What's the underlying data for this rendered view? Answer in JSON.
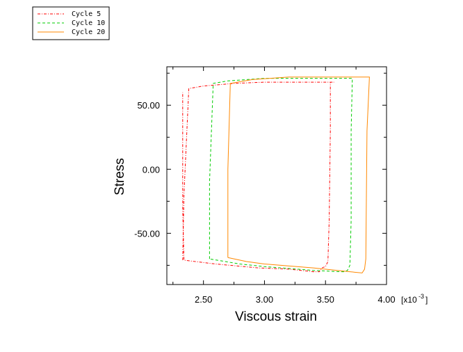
{
  "chart_data": {
    "type": "line",
    "xlabel": "Viscous strain",
    "ylabel": "Stress",
    "x_multiplier_label": "[x10",
    "x_multiplier_exp": "-3",
    "x_multiplier_close": "]",
    "xlim": [
      2.2,
      4.0
    ],
    "ylim": [
      -90,
      80
    ],
    "xticks": [
      2.5,
      3.0,
      3.5,
      4.0
    ],
    "xtick_labels": [
      "2.50",
      "3.00",
      "3.50",
      "4.00"
    ],
    "yticks": [
      -50,
      0,
      50
    ],
    "ytick_labels": [
      "-50.00",
      "0.00",
      "50.00"
    ],
    "grid": false,
    "legend_position": "top-left",
    "series": [
      {
        "name": "Cycle 5",
        "color": "#ff0000",
        "style": "dash-dot",
        "x": [
          2.33,
          2.34,
          2.38,
          2.5,
          2.75,
          3.0,
          3.25,
          3.48,
          3.54,
          3.57,
          3.54,
          3.54,
          3.53,
          3.52,
          3.5,
          3.47,
          3.45,
          3.4,
          3.2,
          2.95,
          2.6,
          2.34,
          2.33,
          2.33
        ],
        "y": [
          -71,
          -20,
          63,
          65,
          67,
          68,
          68,
          68,
          68,
          68,
          68,
          30,
          -40,
          -72,
          -76,
          -77,
          -80,
          -80,
          -78,
          -77,
          -74,
          -71,
          -30,
          60
        ]
      },
      {
        "name": "Cycle 10",
        "color": "#00cc00",
        "style": "dashed",
        "x": [
          2.55,
          2.55,
          2.58,
          2.7,
          3.0,
          3.4,
          3.66,
          3.71,
          3.72,
          3.71,
          3.71,
          3.7,
          3.68,
          3.65,
          3.62,
          3.4,
          3.0,
          2.8,
          2.55
        ],
        "y": [
          -70,
          -10,
          67,
          69,
          71,
          71,
          71,
          71,
          71,
          30,
          -40,
          -75,
          -79,
          -80,
          -80,
          -79,
          -76,
          -74,
          -70
        ]
      },
      {
        "name": "Cycle 20",
        "color": "#ff8800",
        "style": "solid",
        "x": [
          2.7,
          2.7,
          2.72,
          2.9,
          3.2,
          3.6,
          3.8,
          3.85,
          3.86,
          3.84,
          3.83,
          3.82,
          3.8,
          3.7,
          3.4,
          3.0,
          2.85,
          2.7
        ],
        "y": [
          -69,
          0,
          67,
          70,
          72,
          72,
          72,
          72,
          72,
          30,
          -70,
          -78,
          -81,
          -80,
          -77,
          -74,
          -72,
          -69
        ]
      }
    ]
  }
}
